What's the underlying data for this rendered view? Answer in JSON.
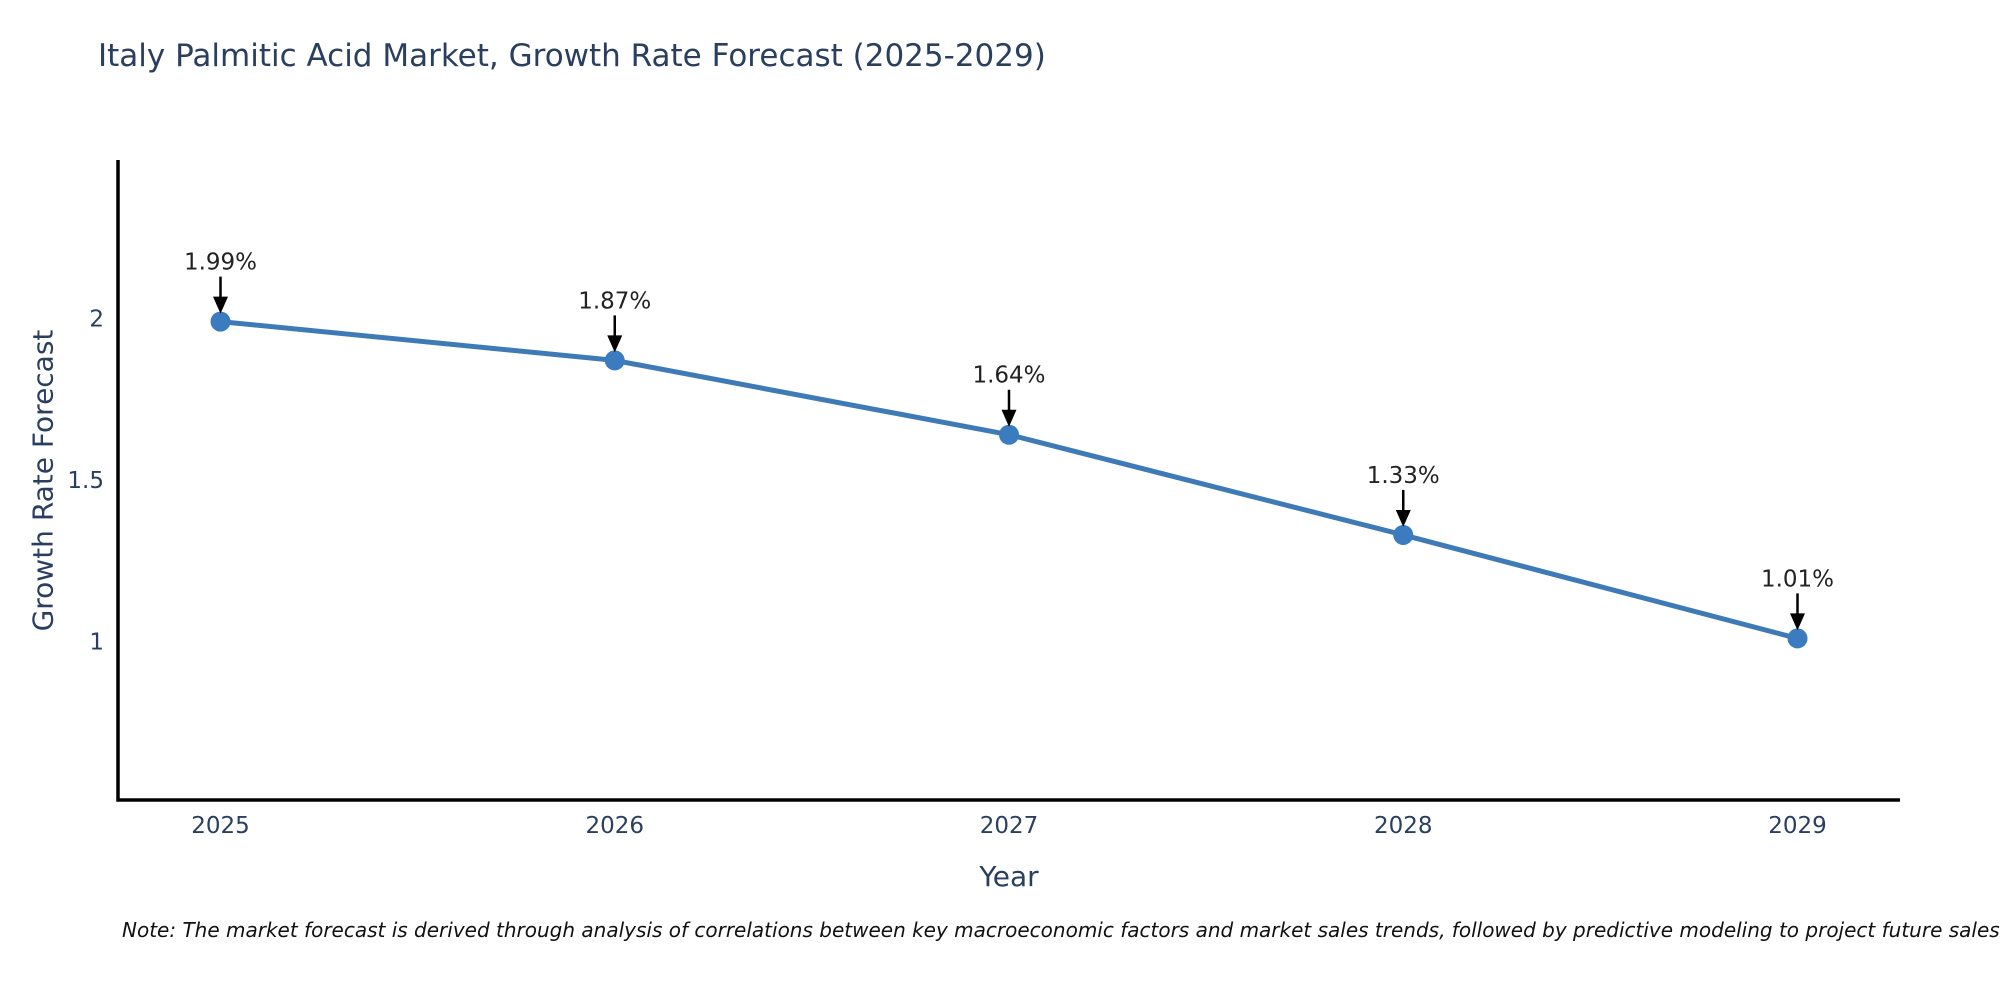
{
  "header": {
    "title": "Italy Palmitic Acid Market, Growth Rate Forecast (2025-2029)"
  },
  "note": "Note: The market forecast is derived through analysis of correlations between key macroeconomic factors and market sales trends, followed by predictive modeling to project future sales",
  "chart_data": {
    "type": "line",
    "title": "Italy Palmitic Acid Market, Growth Rate Forecast (2025-2029)",
    "xlabel": "Year",
    "ylabel": "Growth Rate Forecast",
    "categories": [
      2025,
      2026,
      2027,
      2028,
      2029
    ],
    "values": [
      1.99,
      1.87,
      1.64,
      1.33,
      1.01
    ],
    "point_labels": [
      "1.99%",
      "1.87%",
      "1.64%",
      "1.33%",
      "1.01%"
    ],
    "yticks": [
      1,
      1.5,
      2
    ],
    "ytick_labels": [
      "1",
      "1.5",
      "2"
    ],
    "xlim": [
      2024.74,
      2029.26
    ],
    "ylim": [
      0.51,
      2.49
    ],
    "grid": false,
    "legend": false,
    "colors": {
      "line": "#3e7bb6",
      "marker": "#3b7cc0",
      "axis": "#000000",
      "arrow": "#000000",
      "annotation_text": "#222222",
      "tick_text": "#2a3f5f"
    }
  }
}
